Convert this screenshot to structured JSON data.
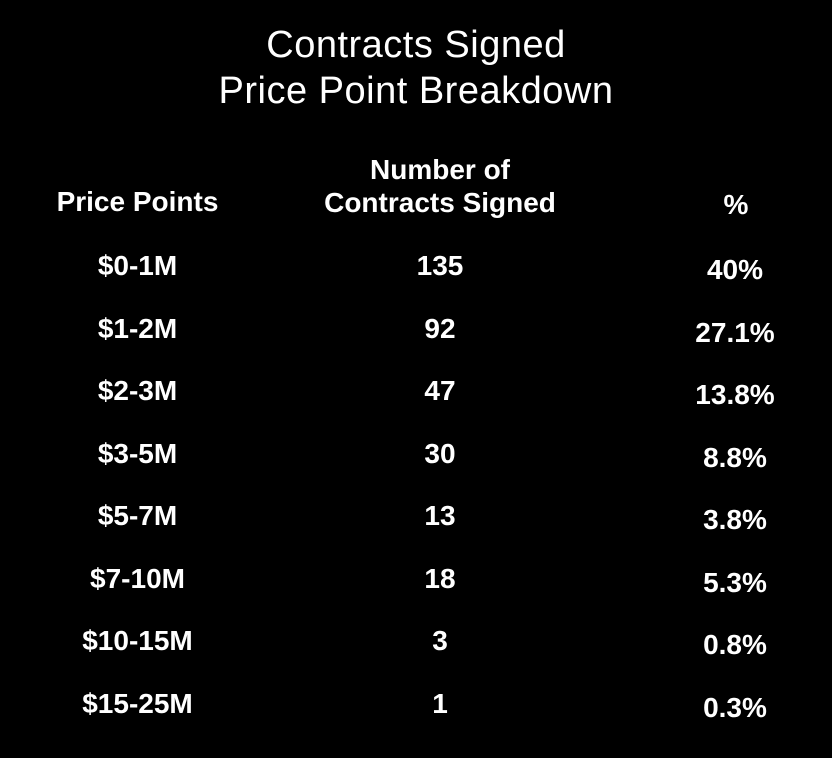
{
  "title": {
    "line1": "Contracts Signed",
    "line2": "Price Point Breakdown"
  },
  "chart_data": {
    "type": "table",
    "title": "Contracts Signed Price Point Breakdown",
    "columns": [
      "Price Points",
      "Number of Contracts Signed",
      "%"
    ],
    "column_header_lines": {
      "count": [
        "Number of",
        "Contracts Signed"
      ]
    },
    "rows": [
      {
        "price": "$0-1M",
        "count": "135",
        "pct": "40%"
      },
      {
        "price": "$1-2M",
        "count": "92",
        "pct": "27.1%"
      },
      {
        "price": "$2-3M",
        "count": "47",
        "pct": "13.8%"
      },
      {
        "price": "$3-5M",
        "count": "30",
        "pct": "8.8%"
      },
      {
        "price": "$5-7M",
        "count": "13",
        "pct": "3.8%"
      },
      {
        "price": "$7-10M",
        "count": "18",
        "pct": "5.3%"
      },
      {
        "price": "$10-15M",
        "count": "3",
        "pct": "0.8%"
      },
      {
        "price": "$15-25M",
        "count": "1",
        "pct": "0.3%"
      }
    ]
  },
  "colors": {
    "background": "#000000",
    "text": "#ffffff"
  }
}
